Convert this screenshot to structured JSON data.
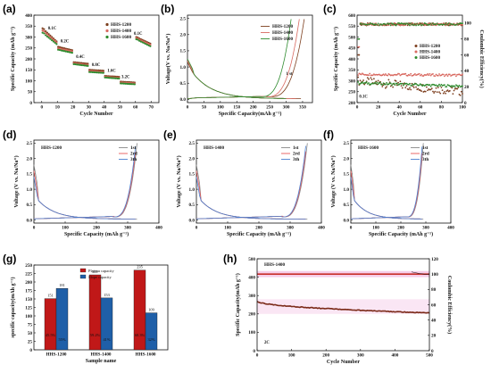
{
  "colors": {
    "hhs1200": "#7d3f1f",
    "hhs1400": "#d96a61",
    "hhs1600": "#2e8b2e",
    "line1st": "#888888",
    "line2nd": "#e85a5a",
    "line3th": "#4a7fd0",
    "plateau": "#c01818",
    "slope": "#1f5fa8",
    "h_band": "#f2b8e0",
    "h_ce": "#c8302a",
    "h_cap": "#7b2a18"
  },
  "chart_data": [
    {
      "id": "a",
      "type": "scatter",
      "panel_label": "(a)",
      "xlabel": "Cycle Number",
      "ylabel": "Specific Capacity (mAh g⁻¹)",
      "xlim": [
        -5,
        75
      ],
      "ylim": [
        0,
        400
      ],
      "xticks": [
        "0",
        "10",
        "20",
        "30",
        "40",
        "50",
        "60",
        "70"
      ],
      "yticks": [
        "0",
        "50",
        "100",
        "150",
        "200",
        "250",
        "300",
        "350",
        "400"
      ],
      "legend": [
        "HHS-1200",
        "HHS-1400",
        "HHS-1600"
      ],
      "annotations": [
        "0.1C",
        "0.2C",
        "0.4C",
        "0.8C",
        "1.6C",
        "3.2C",
        "0.1C"
      ],
      "series": [
        {
          "name": "HHS-1200",
          "segments": [
            [
              0,
              10,
              340,
              280
            ],
            [
              10,
              20,
              255,
              240
            ],
            [
              20,
              30,
              185,
              178
            ],
            [
              30,
              40,
              150,
              146
            ],
            [
              40,
              50,
              122,
              118
            ],
            [
              50,
              60,
              96,
              92
            ],
            [
              60,
              70,
              300,
              270
            ]
          ]
        },
        {
          "name": "HHS-1400",
          "segments": [
            [
              0,
              10,
              330,
              275
            ],
            [
              10,
              20,
              248,
              235
            ],
            [
              20,
              30,
              180,
              172
            ],
            [
              30,
              40,
              145,
              140
            ],
            [
              40,
              50,
              118,
              113
            ],
            [
              50,
              60,
              92,
              88
            ],
            [
              60,
              70,
              295,
              265
            ]
          ]
        },
        {
          "name": "HHS-1600",
          "segments": [
            [
              0,
              10,
              320,
              268
            ],
            [
              10,
              20,
              242,
              228
            ],
            [
              20,
              30,
              176,
              168
            ],
            [
              30,
              40,
              140,
              136
            ],
            [
              40,
              50,
              115,
              110
            ],
            [
              50,
              60,
              88,
              84
            ],
            [
              60,
              70,
              290,
              258
            ]
          ]
        }
      ]
    },
    {
      "id": "b",
      "type": "line",
      "panel_label": "(b)",
      "xlabel": "Specific Capacity(mAh g⁻¹)",
      "ylabel": "Voltage(V vs. Na/Na⁺)",
      "xlim": [
        0,
        380
      ],
      "ylim": [
        -0.1,
        2.6
      ],
      "xticks": [
        "0",
        "50",
        "100",
        "150",
        "200",
        "250",
        "300",
        "350"
      ],
      "yticks": [
        "0.0",
        "0.5",
        "1.0",
        "1.5",
        "2.0",
        "2.5"
      ],
      "legend": [
        "HHS-1200",
        "HHS-1400",
        "HHS-1600"
      ],
      "annotations": [
        "1 st"
      ],
      "series": [
        {
          "name": "HHS-1200",
          "discharge_end": 345,
          "charge_end": 355
        },
        {
          "name": "HHS-1400",
          "discharge_end": 330,
          "charge_end": 340
        },
        {
          "name": "HHS-1600",
          "discharge_end": 300,
          "charge_end": 315
        }
      ]
    },
    {
      "id": "c",
      "type": "scatter",
      "panel_label": "(c)",
      "xlabel": "Cycle Number",
      "ylabel": "Specific Capacity (mAh g⁻¹)",
      "y2label": "Coulombic Efficiency(%)",
      "xlim": [
        0,
        100
      ],
      "ylim": [
        200,
        600
      ],
      "y2lim": [
        0,
        110
      ],
      "xticks": [
        "0",
        "20",
        "40",
        "60",
        "80",
        "100"
      ],
      "yticks": [
        "200",
        "250",
        "300",
        "350",
        "400",
        "450",
        "500",
        "550",
        "600"
      ],
      "y2ticks": [
        "0",
        "20",
        "40",
        "60",
        "80",
        "100"
      ],
      "legend": [
        "HHS-1200",
        "HHS-1400",
        "HHS-1600"
      ],
      "annotations": [
        "0.1C"
      ],
      "series": [
        {
          "name": "HHS-1200",
          "capacity_start": 300,
          "capacity_end": 250
        },
        {
          "name": "HHS-1400",
          "capacity_start": 330,
          "capacity_end": 325
        },
        {
          "name": "HHS-1600",
          "capacity_start": 290,
          "capacity_end": 275
        }
      ]
    },
    {
      "id": "d",
      "type": "line",
      "panel_label": "(d)",
      "inset_title": "HHS-1200",
      "xlabel": "Specific Capacity (mAh g⁻¹)",
      "ylabel": "Voltage (V vs. Na/Na⁺)",
      "xlim": [
        0,
        400
      ],
      "ylim": [
        -0.1,
        2.6
      ],
      "xticks": [
        "0",
        "100",
        "200",
        "300",
        "400"
      ],
      "yticks": [
        "0.0",
        "0.5",
        "1.0",
        "1.5",
        "2.0",
        "2.5"
      ],
      "legend": [
        "1st",
        "2rd",
        "3th"
      ],
      "capacity_end": 330
    },
    {
      "id": "e",
      "type": "line",
      "panel_label": "(e)",
      "inset_title": "HHS-1400",
      "xlabel": "Specific Capacity (mAh g⁻¹)",
      "ylabel": "Voltage (V vs. Na/Na⁺)",
      "xlim": [
        0,
        400
      ],
      "ylim": [
        -0.1,
        2.6
      ],
      "xticks": [
        "0",
        "100",
        "200",
        "300",
        "400"
      ],
      "yticks": [
        "0.0",
        "0.5",
        "1.0",
        "1.5",
        "2.0",
        "2.5"
      ],
      "legend": [
        "1st",
        "2rd",
        "3th"
      ],
      "capacity_end": 355
    },
    {
      "id": "f",
      "type": "line",
      "panel_label": "(f)",
      "inset_title": "HHS-1600",
      "xlabel": "Specific Capacity (mAh g⁻¹)",
      "ylabel": "Voltage (V vs. Na/Na⁺)",
      "xlim": [
        0,
        400
      ],
      "ylim": [
        -0.1,
        2.6
      ],
      "xticks": [
        "0",
        "100",
        "200",
        "300",
        "400"
      ],
      "yticks": [
        "0.0",
        "0.5",
        "1.0",
        "1.5",
        "2.0",
        "2.5"
      ],
      "legend": [
        "1st",
        "2rd",
        "3th"
      ],
      "capacity_end": 290
    },
    {
      "id": "g",
      "type": "bar",
      "panel_label": "(g)",
      "xlabel": "Sample name",
      "ylabel": "specific capacity(mAh g⁻¹)",
      "ylim": [
        0,
        250
      ],
      "yticks": [
        "0",
        "25",
        "50",
        "75",
        "100",
        "125",
        "150",
        "175",
        "200",
        "225",
        "250"
      ],
      "categories": [
        "HHS-1200",
        "HHS-1400",
        "HHS-1600"
      ],
      "legend": [
        "Plateau capacity",
        "Slope capacity"
      ],
      "series": [
        {
          "name": "Plateau capacity",
          "values": [
            151,
            221,
            235
          ],
          "percent": [
            "45.5%",
            "59.2%",
            "68.3%"
          ]
        },
        {
          "name": "Slope capacity",
          "values": [
            181,
            153,
            109
          ],
          "percent": [
            "55%",
            "41%",
            "32%"
          ]
        }
      ]
    },
    {
      "id": "h",
      "type": "scatter",
      "panel_label": "(h)",
      "inset_title": "HHS-1400",
      "xlabel": "Cycle Number",
      "ylabel": "Specific Capacity(mAh g⁻¹)",
      "y2label": "Coulombic Efficiency(%)",
      "xlim": [
        0,
        500
      ],
      "ylim": [
        0,
        500
      ],
      "y2lim": [
        0,
        120
      ],
      "xticks": [
        "0",
        "100",
        "200",
        "300",
        "400",
        "500"
      ],
      "yticks": [
        "0",
        "100",
        "200",
        "300",
        "400",
        "500"
      ],
      "y2ticks": [
        "0",
        "20",
        "40",
        "60",
        "80",
        "100",
        "120"
      ],
      "annotations": [
        "2C"
      ],
      "series": [
        {
          "name": "Coulombic efficiency",
          "value": 100
        },
        {
          "name": "Capacity",
          "start": 270,
          "end": 205
        }
      ]
    }
  ]
}
